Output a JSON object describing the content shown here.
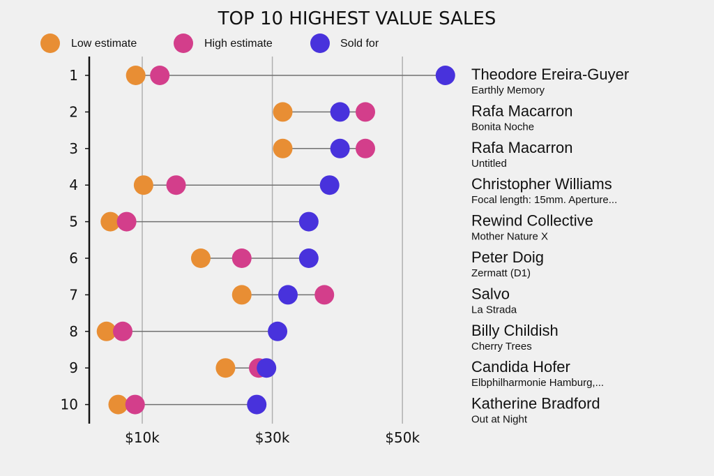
{
  "chart_data": {
    "type": "dumbbell",
    "title": "TOP 10 HIGHEST VALUE SALES",
    "xlabel": "",
    "ylabel": "",
    "xlim": [
      0,
      57
    ],
    "x_units": "thousands USD",
    "xticks": [
      10,
      30,
      50
    ],
    "xtick_labels": [
      "$10k",
      "$30k",
      "$50k"
    ],
    "grid": "vertical",
    "legend_position": "top-left",
    "legend": [
      {
        "key": "low",
        "label": "Low estimate",
        "color": "#E88E34"
      },
      {
        "key": "high",
        "label": "High estimate",
        "color": "#D33E8B"
      },
      {
        "key": "sold",
        "label": "Sold for",
        "color": "#4832DC"
      }
    ],
    "categories": [
      "1",
      "2",
      "3",
      "4",
      "5",
      "6",
      "7",
      "8",
      "9",
      "10"
    ],
    "rows": [
      {
        "rank": "1",
        "artist": "Theodore Ereira-Guyer",
        "work": "Earthly Memory",
        "low": 9,
        "high": 12.7,
        "sold": 56.6
      },
      {
        "rank": "2",
        "artist": "Rafa Macarron",
        "work": "Bonita Noche",
        "low": 31.6,
        "high": 44.3,
        "sold": 40.4
      },
      {
        "rank": "3",
        "artist": "Rafa Macarron",
        "work": "Untitled",
        "low": 31.6,
        "high": 44.3,
        "sold": 40.4
      },
      {
        "rank": "4",
        "artist": "Christopher Williams",
        "work": "Focal length: 15mm. Aperture...",
        "low": 10.2,
        "high": 15.2,
        "sold": 38.8
      },
      {
        "rank": "5",
        "artist": "Rewind Collective",
        "work": "Mother Nature X",
        "low": 5.1,
        "high": 7.6,
        "sold": 35.6
      },
      {
        "rank": "6",
        "artist": "Peter Doig",
        "work": "Zermatt (D1)",
        "low": 19.0,
        "high": 25.3,
        "sold": 35.6
      },
      {
        "rank": "7",
        "artist": "Salvo",
        "work": "La Strada",
        "low": 25.3,
        "high": 38.0,
        "sold": 32.4
      },
      {
        "rank": "8",
        "artist": "Billy Childish",
        "work": "Cherry Trees",
        "low": 4.5,
        "high": 7.0,
        "sold": 30.8
      },
      {
        "rank": "9",
        "artist": "Candida Hofer",
        "work": "Elbphilharmonie Hamburg,...",
        "low": 22.8,
        "high": 27.9,
        "sold": 29.1
      },
      {
        "rank": "10",
        "artist": "Katherine Bradford",
        "work": "Out at Night",
        "low": 6.3,
        "high": 8.9,
        "sold": 27.6
      }
    ]
  }
}
